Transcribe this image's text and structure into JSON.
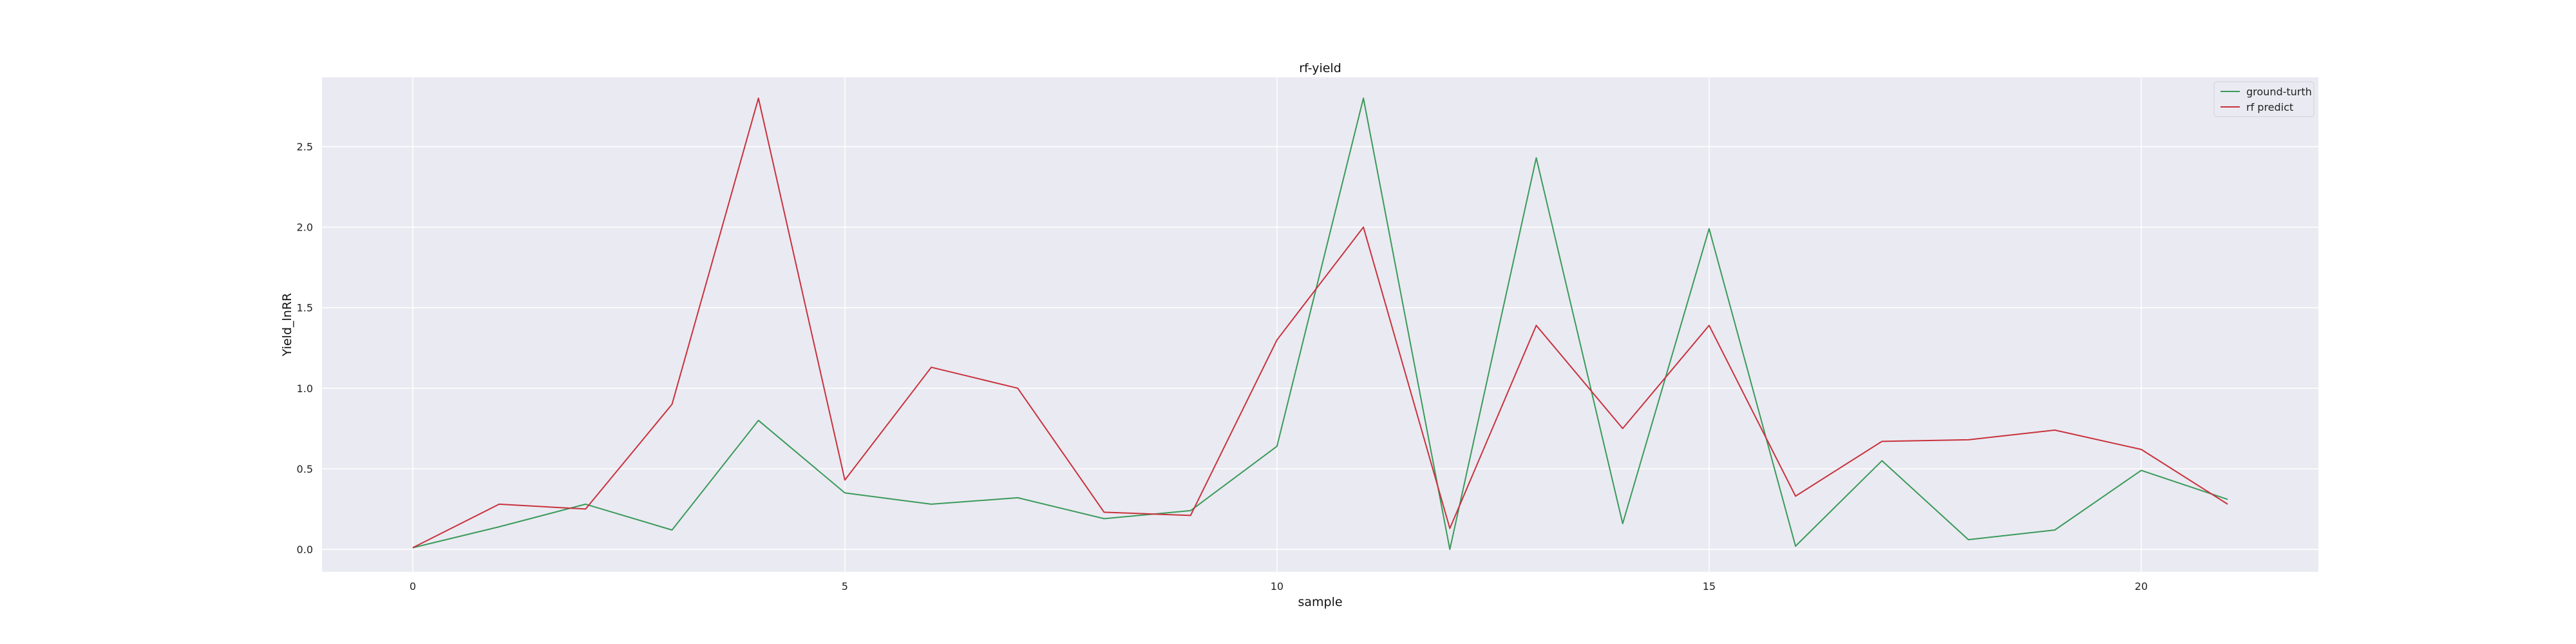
{
  "chart_data": {
    "type": "line",
    "title": "rf-yield",
    "xlabel": "sample",
    "ylabel": "Yield_lnRR",
    "xlim": [
      -1.05,
      22.05
    ],
    "ylim": [
      -0.14,
      2.93
    ],
    "xticks": [
      0,
      5,
      10,
      15,
      20
    ],
    "yticks": [
      0.0,
      0.5,
      1.0,
      1.5,
      2.0,
      2.5
    ],
    "ytick_labels": [
      "0.0",
      "0.5",
      "1.0",
      "1.5",
      "2.0",
      "2.5"
    ],
    "grid": true,
    "legend_position": "top-right",
    "x": [
      0,
      1,
      2,
      3,
      4,
      5,
      6,
      7,
      8,
      9,
      10,
      11,
      12,
      13,
      14,
      15,
      16,
      17,
      18,
      19,
      20,
      21
    ],
    "series": [
      {
        "name": "ground-turth",
        "color": "#3a9a5a",
        "values": [
          0.01,
          0.14,
          0.28,
          0.12,
          0.8,
          0.35,
          0.28,
          0.32,
          0.19,
          0.24,
          0.64,
          2.8,
          0.0,
          2.43,
          0.16,
          1.99,
          0.02,
          0.55,
          0.06,
          0.12,
          0.49,
          0.31
        ]
      },
      {
        "name": "rf predict",
        "color": "#c8323c",
        "values": [
          0.01,
          0.28,
          0.25,
          0.9,
          2.8,
          0.43,
          1.13,
          1.0,
          0.23,
          0.21,
          1.3,
          2.0,
          0.13,
          1.39,
          0.75,
          1.39,
          0.33,
          0.67,
          0.68,
          0.74,
          0.62,
          0.28
        ]
      }
    ]
  }
}
